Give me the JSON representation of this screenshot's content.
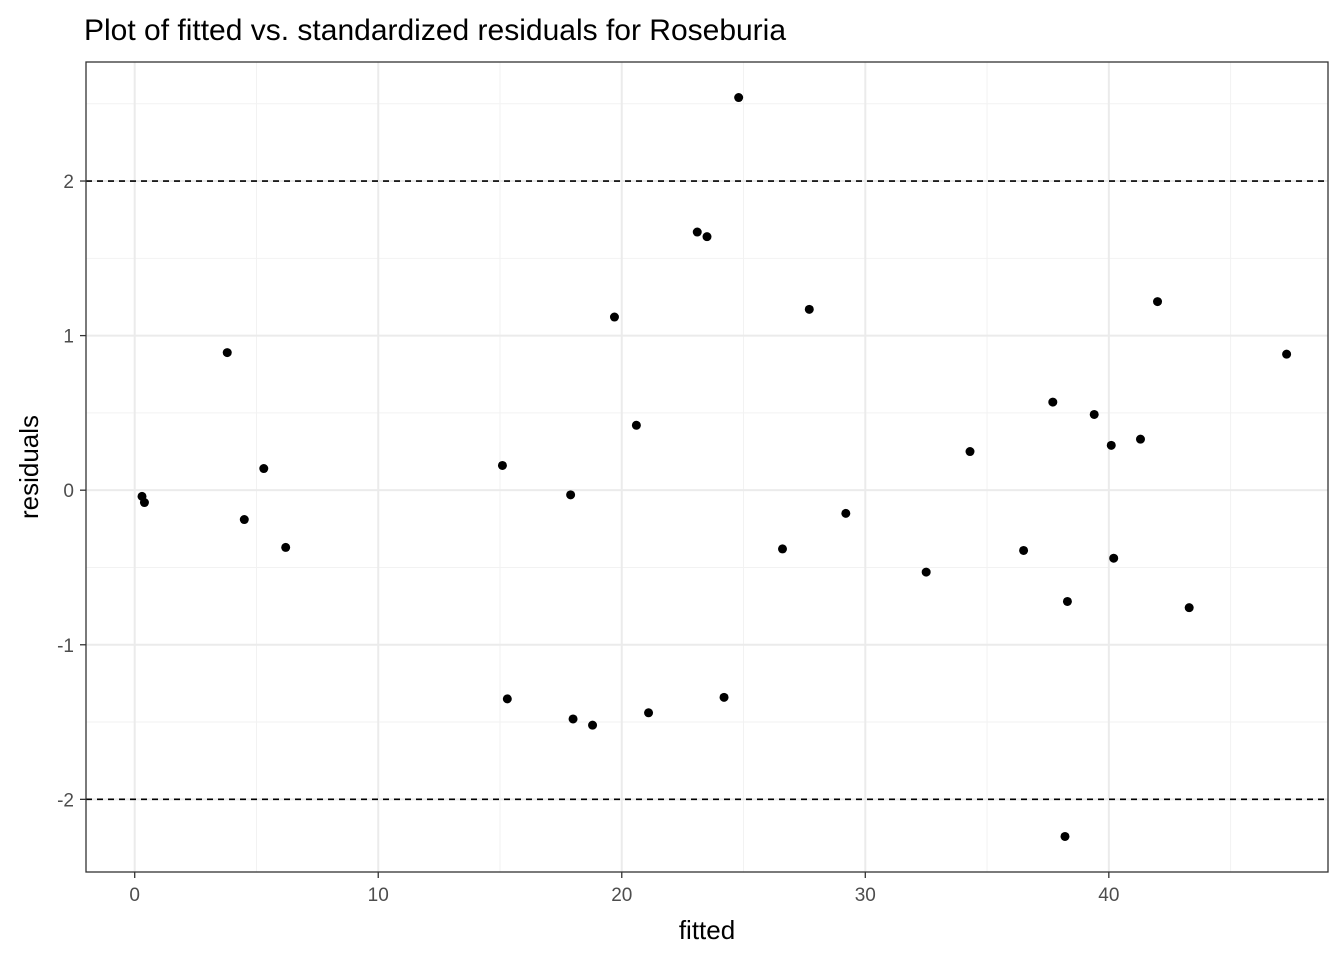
{
  "chart_data": {
    "type": "scatter",
    "title": "Plot of fitted vs. standardized residuals for Roseburia",
    "xlabel": "fitted",
    "ylabel": "residuals",
    "xlim": [
      -2,
      49
    ],
    "ylim": [
      -2.47,
      2.77
    ],
    "x_ticks": [
      0,
      10,
      20,
      30,
      40
    ],
    "y_ticks": [
      -2,
      -1,
      0,
      1,
      2
    ],
    "x_tick_labels": [
      "0",
      "10",
      "20",
      "30",
      "40"
    ],
    "y_tick_labels": [
      "-2",
      "-1",
      "0",
      "1",
      "2"
    ],
    "x_minor": [
      5,
      15,
      25,
      35,
      45
    ],
    "y_minor": [
      -1.5,
      -0.5,
      0.5,
      1.5,
      2.5
    ],
    "grid": true,
    "reference_lines": [
      2,
      -2
    ],
    "point_color": "#000000",
    "points": [
      {
        "x": 0.3,
        "y": -0.04
      },
      {
        "x": 0.4,
        "y": -0.08
      },
      {
        "x": 3.8,
        "y": 0.89
      },
      {
        "x": 4.5,
        "y": -0.19
      },
      {
        "x": 5.3,
        "y": 0.14
      },
      {
        "x": 6.2,
        "y": -0.37
      },
      {
        "x": 15.1,
        "y": 0.16
      },
      {
        "x": 15.3,
        "y": -1.35
      },
      {
        "x": 17.9,
        "y": -0.03
      },
      {
        "x": 18.0,
        "y": -1.48
      },
      {
        "x": 18.8,
        "y": -1.52
      },
      {
        "x": 19.7,
        "y": 1.12
      },
      {
        "x": 20.6,
        "y": 0.42
      },
      {
        "x": 21.1,
        "y": -1.44
      },
      {
        "x": 23.1,
        "y": 1.67
      },
      {
        "x": 23.5,
        "y": 1.64
      },
      {
        "x": 24.2,
        "y": -1.34
      },
      {
        "x": 24.8,
        "y": 2.54
      },
      {
        "x": 26.6,
        "y": -0.38
      },
      {
        "x": 27.7,
        "y": 1.17
      },
      {
        "x": 29.2,
        "y": -0.15
      },
      {
        "x": 32.5,
        "y": -0.53
      },
      {
        "x": 34.3,
        "y": 0.25
      },
      {
        "x": 36.5,
        "y": -0.39
      },
      {
        "x": 37.7,
        "y": 0.57
      },
      {
        "x": 38.2,
        "y": -2.24
      },
      {
        "x": 38.3,
        "y": -0.72
      },
      {
        "x": 39.4,
        "y": 0.49
      },
      {
        "x": 40.1,
        "y": 0.29
      },
      {
        "x": 40.2,
        "y": -0.44
      },
      {
        "x": 41.3,
        "y": 0.33
      },
      {
        "x": 42.0,
        "y": 1.22
      },
      {
        "x": 43.3,
        "y": -0.76
      },
      {
        "x": 47.3,
        "y": 0.88
      }
    ]
  }
}
